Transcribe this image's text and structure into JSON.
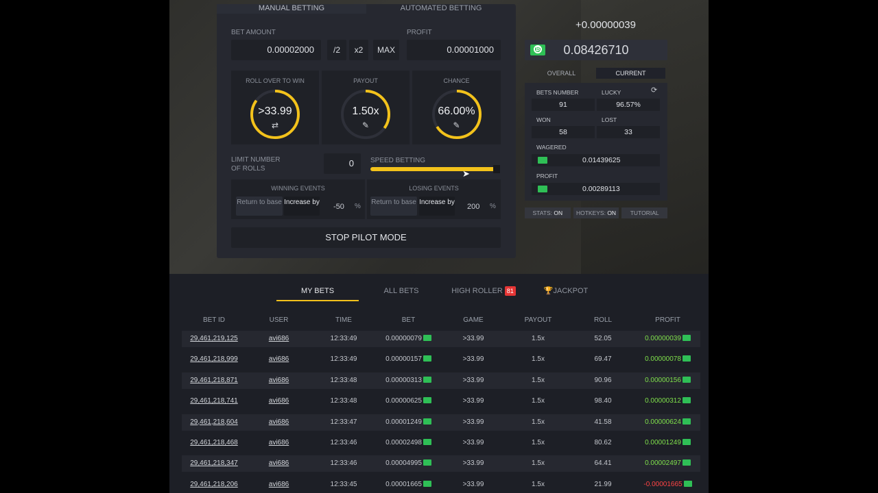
{
  "mode_tabs": [
    {
      "label": "MANUAL BETTING",
      "active": true
    },
    {
      "label": "AUTOMATED BETTING",
      "active": false
    }
  ],
  "bet": {
    "amount_label": "BET AMOUNT",
    "amount": "0.00002000",
    "half_label": "/2",
    "double_label": "x2",
    "max_label": "MAX",
    "profit_label": "PROFIT",
    "profit": "0.00001000"
  },
  "dials": [
    {
      "label": "ROLL OVER TO WIN",
      "value": ">33.99",
      "icon": "swap-icon",
      "fill": 0.85
    },
    {
      "label": "PAYOUT",
      "value": "1.50x",
      "icon": "pencil-icon",
      "fill": 0.35
    },
    {
      "label": "CHANCE",
      "value": "66.00%",
      "icon": "pencil-icon",
      "fill": 0.66
    }
  ],
  "limit": {
    "label_line1": "LIMIT NUMBER",
    "label_line2": "OF ROLLS",
    "value": "0"
  },
  "speed": {
    "label": "SPEED BETTING",
    "level": 0.97
  },
  "winning": {
    "label": "WINNING EVENTS",
    "return_label": "Return to base",
    "increase_label": "Increase by",
    "value": "-50",
    "unit": "%"
  },
  "losing": {
    "label": "LOSING EVENTS",
    "return_label": "Return to base",
    "increase_label": "Increase by",
    "value": "200",
    "unit": "%"
  },
  "stop_button": "STOP PILOT MODE",
  "session_profit": "+0.00000039",
  "balance": "0.08426710",
  "stat_tabs": [
    {
      "label": "OVERALL",
      "active": false
    },
    {
      "label": "CURRENT",
      "active": true
    }
  ],
  "stats": {
    "bets_number_label": "BETS NUMBER",
    "bets_number": "91",
    "lucky_label": "LUCKY",
    "lucky": "96.57%",
    "won_label": "WON",
    "won": "58",
    "lost_label": "LOST",
    "lost": "33",
    "wagered_label": "WAGERED",
    "wagered": "0.01439625",
    "profit_label": "PROFIT",
    "profit": "0.00289113"
  },
  "footer": {
    "stats_label": "STATS:",
    "stats_value": "ON",
    "hotkeys_label": "HOTKEYS:",
    "hotkeys_value": "ON",
    "tutorial_label": "TUTORIAL"
  },
  "table_tabs": [
    {
      "label": "MY BETS",
      "active": true
    },
    {
      "label": "ALL BETS",
      "active": false
    },
    {
      "label": "HIGH ROLLER",
      "badge": "81",
      "active": false
    },
    {
      "label": "JACKPOT",
      "icon": "trophy-icon",
      "active": false
    }
  ],
  "columns": [
    "BET ID",
    "USER",
    "TIME",
    "BET",
    "GAME",
    "PAYOUT",
    "ROLL",
    "PROFIT"
  ],
  "rows": [
    {
      "id": "29,461,219,125",
      "user": "avi686",
      "time": "12:33:49",
      "bet": "0.00000079",
      "game": ">33.99",
      "payout": "1.5x",
      "roll": "52.05",
      "profit": "0.00000039",
      "win": true
    },
    {
      "id": "29,461,218,999",
      "user": "avi686",
      "time": "12:33:49",
      "bet": "0.00000157",
      "game": ">33.99",
      "payout": "1.5x",
      "roll": "69.47",
      "profit": "0.00000078",
      "win": true
    },
    {
      "id": "29,461,218,871",
      "user": "avi686",
      "time": "12:33:48",
      "bet": "0.00000313",
      "game": ">33.99",
      "payout": "1.5x",
      "roll": "90.96",
      "profit": "0.00000156",
      "win": true
    },
    {
      "id": "29,461,218,741",
      "user": "avi686",
      "time": "12:33:48",
      "bet": "0.00000625",
      "game": ">33.99",
      "payout": "1.5x",
      "roll": "98.40",
      "profit": "0.00000312",
      "win": true
    },
    {
      "id": "29,461,218,604",
      "user": "avi686",
      "time": "12:33:47",
      "bet": "0.00001249",
      "game": ">33.99",
      "payout": "1.5x",
      "roll": "41.58",
      "profit": "0.00000624",
      "win": true
    },
    {
      "id": "29,461,218,468",
      "user": "avi686",
      "time": "12:33:46",
      "bet": "0.00002498",
      "game": ">33.99",
      "payout": "1.5x",
      "roll": "80.62",
      "profit": "0.00001249",
      "win": true
    },
    {
      "id": "29,461,218,347",
      "user": "avi686",
      "time": "12:33:46",
      "bet": "0.00004995",
      "game": ">33.99",
      "payout": "1.5x",
      "roll": "64.41",
      "profit": "0.00002497",
      "win": true
    },
    {
      "id": "29,461,218,206",
      "user": "avi686",
      "time": "12:33:45",
      "bet": "0.00001665",
      "game": ">33.99",
      "payout": "1.5x",
      "roll": "21.99",
      "profit": "-0.00001665",
      "win": false
    }
  ],
  "colors": {
    "accent": "#f3c21b",
    "win": "#7fe04b",
    "loss": "#ff4444",
    "coin": "#2fbf56"
  }
}
